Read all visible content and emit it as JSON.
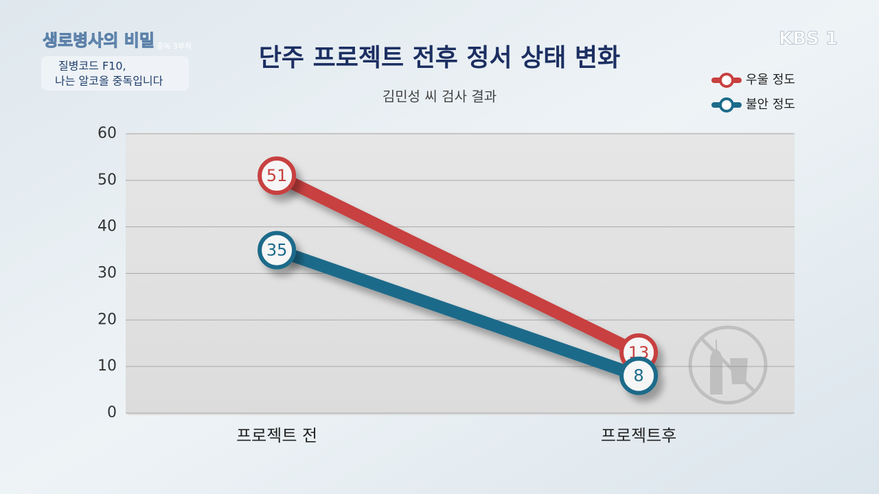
{
  "overlay": {
    "program_title": "생로병사의 비밀",
    "series_tag": "중독 3부작",
    "episode_line1": "질병코드 F10,",
    "episode_line2": "나는 알코올 중독입니다",
    "channel": "KBS 1"
  },
  "chart_data": {
    "type": "line",
    "title": "단주 프로젝트 전후 정서 상태 변화",
    "subtitle": "김민성 씨 검사 결과",
    "categories": [
      "프로젝트 전",
      "프로젝트후"
    ],
    "series": [
      {
        "name": "우울 정도",
        "color": "#c8403f",
        "values": [
          51,
          13
        ]
      },
      {
        "name": "불안 정도",
        "color": "#1c6b8a",
        "values": [
          35,
          8
        ]
      }
    ],
    "ylim": [
      0,
      60
    ],
    "yticks": [
      0,
      10,
      20,
      30,
      40,
      50,
      60
    ],
    "grid": true,
    "legend": "top-right"
  }
}
